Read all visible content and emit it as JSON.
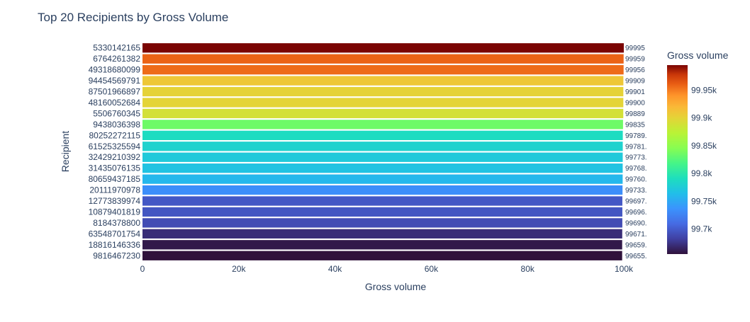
{
  "chart_data": {
    "type": "bar",
    "orientation": "horizontal",
    "title": "Top 20 Recipients by Gross Volume",
    "xlabel": "Gross volume",
    "ylabel": "Recipient",
    "xlim": [
      0,
      100000
    ],
    "x_ticks": [
      {
        "value": 0,
        "label": "0"
      },
      {
        "value": 20000,
        "label": "20k"
      },
      {
        "value": 40000,
        "label": "40k"
      },
      {
        "value": 60000,
        "label": "60k"
      },
      {
        "value": 80000,
        "label": "80k"
      },
      {
        "value": 100000,
        "label": "100k"
      }
    ],
    "categories": [
      "5330142165",
      "6764261382",
      "49318680099",
      "94454569791",
      "87501966897",
      "48160052684",
      "5506760345",
      "9438036398",
      "80252272115",
      "61525325594",
      "32429210392",
      "31435076135",
      "80659437185",
      "20111970978",
      "12773839974",
      "10879401819",
      "8184378800",
      "63548701754",
      "18816146336",
      "9816467230"
    ],
    "values": [
      99995,
      99959,
      99956,
      99909,
      99901,
      99900,
      99889,
      99835,
      99789,
      99781,
      99773,
      99768,
      99760,
      99733,
      99697,
      99696,
      99690,
      99671,
      99659,
      99655
    ],
    "data_labels": [
      "99995",
      "99959",
      "99956",
      "99909",
      "99901",
      "99900",
      "99889",
      "99835",
      "99789.",
      "99781.",
      "99773.",
      "99768.",
      "99760.",
      "99733.",
      "99697.",
      "99696.",
      "99690.",
      "99671.",
      "99659.",
      "99655."
    ],
    "colorbar": {
      "title": "Gross volume",
      "colorscale": "Turbo",
      "range": [
        99655,
        99995
      ],
      "ticks": [
        {
          "value": 99700,
          "label": "99.7k"
        },
        {
          "value": 99750,
          "label": "99.75k"
        },
        {
          "value": 99800,
          "label": "99.8k"
        },
        {
          "value": 99850,
          "label": "99.85k"
        },
        {
          "value": 99900,
          "label": "99.9k"
        },
        {
          "value": 99950,
          "label": "99.95k"
        }
      ]
    },
    "grid": false,
    "legend": "colorbar-right"
  }
}
